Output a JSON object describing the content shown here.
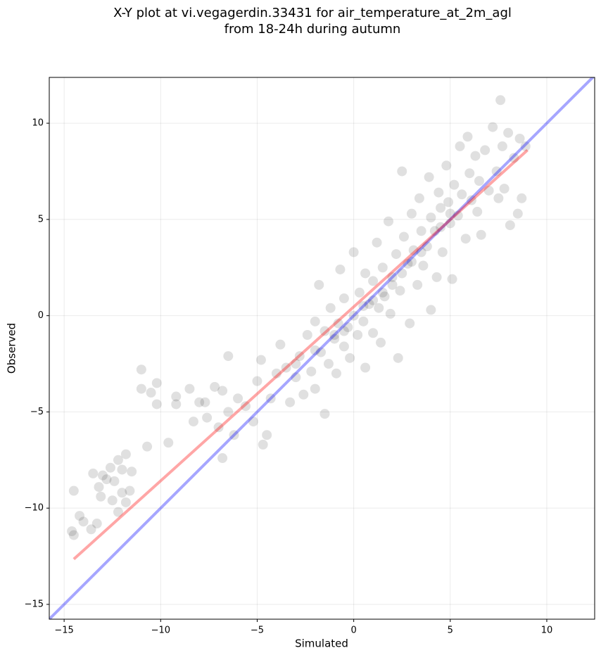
{
  "chart_data": {
    "type": "scatter",
    "title": [
      "X-Y plot at vi.vegagerdin.33431 for air_temperature_at_2m_agl",
      "from 18-24h during autumn"
    ],
    "xlabel": "Simulated",
    "ylabel": "Observed",
    "xlim": [
      -15.77,
      12.48
    ],
    "ylim": [
      -15.77,
      12.38
    ],
    "xticks": [
      {
        "value": -15,
        "label": "−15"
      },
      {
        "value": -10,
        "label": "−10"
      },
      {
        "value": -5,
        "label": "−5"
      },
      0,
      5,
      10
    ],
    "yticks": [
      {
        "value": -15,
        "label": "−15"
      },
      {
        "value": -10,
        "label": "−10"
      },
      {
        "value": -5,
        "label": "−5"
      },
      0,
      5,
      10
    ],
    "grid": true,
    "color": "#000000",
    "alpha": 0.12,
    "x": [
      -14.5,
      -14.6,
      -14.5,
      -14.2,
      -14,
      -13.6,
      -13.3,
      -13.5,
      -13.2,
      -13,
      -12.8,
      -12.6,
      -12.4,
      -12.2,
      -12,
      -11.8,
      -11.5,
      -12,
      -11.8,
      -12.2,
      -11.6,
      -12.5,
      -13.1,
      -11,
      -11,
      -10.2,
      -10.5,
      -10.2,
      -10.7,
      -9.6,
      -9.2,
      -9.2,
      -8.5,
      -8.3,
      -8,
      -7.7,
      -7.6,
      -7.2,
      -6.8,
      -7,
      -6.5,
      -6,
      -6.8,
      -6.2,
      -6.5,
      -5.6,
      -5,
      -4.8,
      -5.2,
      -4.7,
      -4.5,
      -4.3,
      -4,
      -3.8,
      -3.5,
      -3.3,
      -3,
      -2.8,
      -2.6,
      -2.4,
      -2.2,
      -2,
      -2,
      -1.8,
      -1.7,
      -1.5,
      -1.5,
      -1.3,
      -1.2,
      -1,
      -0.9,
      -0.8,
      -0.7,
      -0.5,
      -0.5,
      -0.3,
      -0.2,
      0,
      0,
      0.2,
      0.3,
      0.5,
      0.6,
      0.6,
      0.8,
      1,
      1,
      1.2,
      1.3,
      1.4,
      1.5,
      1.6,
      1.8,
      1.9,
      2,
      2.2,
      2.3,
      2.4,
      2.5,
      2.6,
      2.8,
      2.9,
      3,
      3.1,
      3.3,
      3.4,
      3.5,
      3.6,
      3.8,
      3.9,
      4,
      4,
      4.2,
      4.3,
      4.4,
      4.5,
      4.6,
      4.8,
      4.9,
      5,
      5.1,
      5.2,
      5.4,
      5.5,
      5.6,
      5.8,
      5.9,
      6,
      6.1,
      6.3,
      6.4,
      6.5,
      6.6,
      6.8,
      7,
      7.2,
      7.4,
      7.5,
      7.6,
      7.7,
      7.8,
      8,
      8.1,
      8.3,
      8.5,
      8.6,
      8.7,
      8.9,
      -1,
      -0.5,
      0.5,
      1,
      1.5,
      2,
      2.5,
      3,
      3.5,
      -2,
      -3,
      4.5,
      5
    ],
    "y": [
      -9.1,
      -11.2,
      -11.4,
      -10.4,
      -10.7,
      -11.1,
      -10.8,
      -8.2,
      -8.9,
      -8.3,
      -8.5,
      -7.9,
      -8.6,
      -7.5,
      -8,
      -7.2,
      -8.1,
      -9.2,
      -9.7,
      -10.2,
      -9.1,
      -9.6,
      -9.4,
      -2.8,
      -3.8,
      -3.5,
      -4,
      -4.6,
      -6.8,
      -6.6,
      -4.2,
      -4.6,
      -3.8,
      -5.5,
      -4.5,
      -4.5,
      -5.3,
      -3.7,
      -3.9,
      -5.8,
      -5,
      -4.3,
      -7.4,
      -6.2,
      -2.1,
      -4.7,
      -3.4,
      -2.3,
      -5.5,
      -6.7,
      -6.2,
      -4.3,
      -3,
      -1.5,
      -2.7,
      -4.5,
      -3.2,
      -2.1,
      -4.1,
      -1,
      -2.9,
      -0.3,
      -3.8,
      1.6,
      -1.9,
      -0.8,
      -5.1,
      -2.5,
      0.4,
      -1.2,
      -3,
      -0.4,
      2.4,
      -1.6,
      0.9,
      -0.6,
      -2.2,
      0,
      3.3,
      -1,
      1.2,
      -0.3,
      2.2,
      -2.7,
      0.6,
      1.8,
      -0.9,
      3.8,
      0.4,
      -1.4,
      2.5,
      1,
      4.9,
      0.1,
      2,
      3.2,
      -2.2,
      1.3,
      7.5,
      4.1,
      2.7,
      -0.4,
      5.3,
      3.4,
      1.6,
      6.1,
      4.4,
      2.6,
      3.6,
      7.2,
      5.1,
      0.3,
      4.4,
      2,
      6.4,
      5.6,
      3.3,
      7.8,
      5.9,
      4.8,
      1.9,
      6.8,
      5.2,
      8.8,
      6.3,
      4,
      9.3,
      7.4,
      6,
      8.3,
      5.4,
      7,
      4.2,
      8.6,
      6.5,
      9.8,
      7.5,
      6.1,
      11.2,
      8.8,
      6.6,
      9.5,
      4.7,
      8.2,
      5.3,
      9.2,
      6.1,
      8.8,
      -1,
      -0.8,
      0.5,
      0.8,
      1.2,
      1.6,
      2.2,
      2.8,
      3.3,
      -1.8,
      -2.5,
      4.6,
      5.3
    ],
    "lines": [
      {
        "color": "#0000ff",
        "x": [
          -15.77,
          12.48
        ],
        "y": [
          -15.77,
          12.48
        ]
      },
      {
        "color": "#ff0000",
        "x": [
          -14.5,
          9
        ],
        "y": [
          -12.65,
          8.6
        ]
      }
    ]
  }
}
